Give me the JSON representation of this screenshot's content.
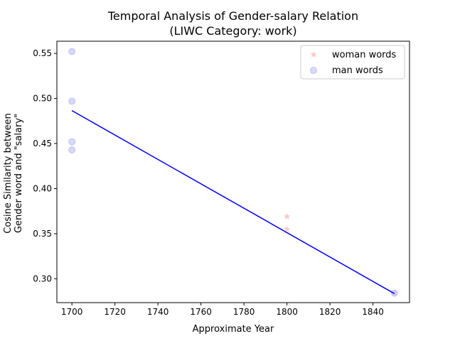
{
  "chart_data": {
    "type": "scatter",
    "title_line1": "Temporal Analysis of Gender-salary Relation",
    "title_line2": "(LIWC Category: work)",
    "xlabel": "Approximate Year",
    "ylabel_line1": "Cosine Similarity between",
    "ylabel_line2": "Gender word and \"salary\"",
    "xlim": [
      1693,
      1857
    ],
    "ylim": [
      0.2735,
      0.5635
    ],
    "xticks": [
      1700,
      1720,
      1740,
      1760,
      1780,
      1800,
      1820,
      1840
    ],
    "yticks": [
      0.3,
      0.35,
      0.4,
      0.45,
      0.5,
      0.55
    ],
    "ytick_labels": [
      "0.30",
      "0.35",
      "0.40",
      "0.45",
      "0.50",
      "0.55"
    ],
    "legend_position": "upper right",
    "series": [
      {
        "name": "woman words",
        "marker": "star",
        "color": "#f4b6b0",
        "points": [
          {
            "x": 1800,
            "y": 0.369
          },
          {
            "x": 1800,
            "y": 0.355
          },
          {
            "x": 1850,
            "y": 0.284
          }
        ]
      },
      {
        "name": "man words",
        "marker": "circle",
        "color": "#b8b8f8",
        "points": [
          {
            "x": 1700,
            "y": 0.552
          },
          {
            "x": 1700,
            "y": 0.497
          },
          {
            "x": 1700,
            "y": 0.452
          },
          {
            "x": 1700,
            "y": 0.443
          },
          {
            "x": 1850,
            "y": 0.284
          }
        ]
      }
    ],
    "trend_line": {
      "color": "#0000ff",
      "points": [
        {
          "x": 1700,
          "y": 0.4865
        },
        {
          "x": 1850,
          "y": 0.2835
        }
      ]
    }
  }
}
